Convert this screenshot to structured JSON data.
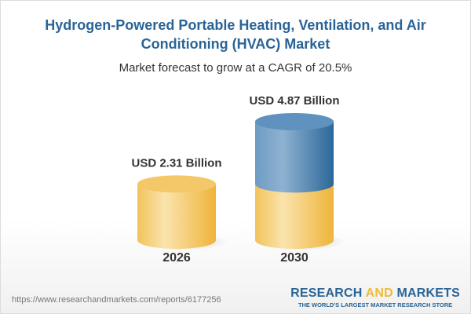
{
  "title": "Hydrogen-Powered Portable Heating, Ventilation, and Air Conditioning (HVAC) Market",
  "subtitle": "Market forecast to grow at a CAGR of 20.5%",
  "footer": {
    "url": "https://www.researchandmarkets.com/reports/6177256",
    "logo_part1": "RESEARCH ",
    "logo_part2": "AND",
    "logo_part3": " MARKETS",
    "logo_tagline": "THE WORLD'S LARGEST MARKET RESEARCH STORE"
  },
  "colors": {
    "title": "#2a6496",
    "base": "#f2c35a",
    "growth": "#4f86b5",
    "logo_accent": "#f0b93a"
  },
  "chart_data": {
    "type": "bar",
    "style": "3d-cylinder",
    "categories": [
      "2026",
      "2030"
    ],
    "values": [
      2.31,
      4.87
    ],
    "data_labels": [
      "USD 2.31 Billion",
      "USD 4.87 Billion"
    ],
    "unit": "USD Billion",
    "cagr": "20.5%"
  }
}
